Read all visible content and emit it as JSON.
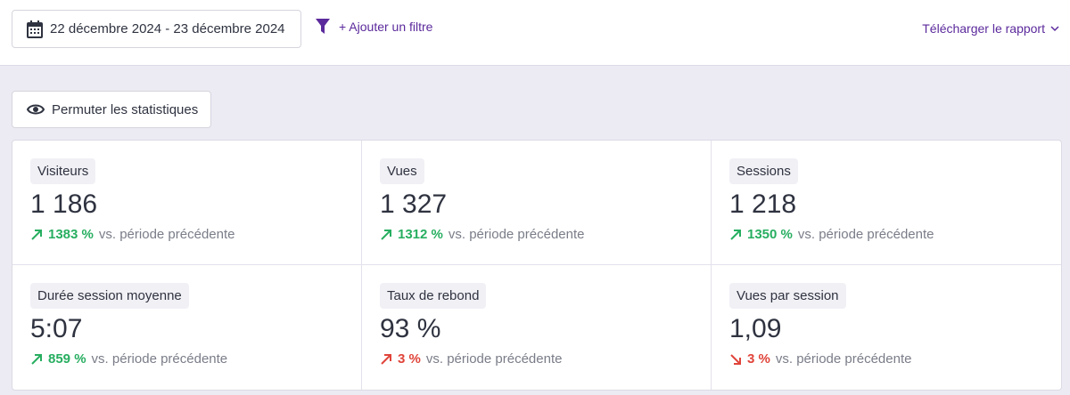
{
  "toolbar": {
    "date_range": "22 décembre 2024 - 23 décembre 2024",
    "add_filter": "+ Ajouter un filtre",
    "download_report": "Télécharger le rapport"
  },
  "toggle_button": "Permuter les statistiques",
  "stats": [
    {
      "label": "Visiteurs",
      "value": "1 186",
      "change": "1383 %",
      "trend": "up",
      "sentiment": "positive",
      "comparison": "vs. période précédente"
    },
    {
      "label": "Vues",
      "value": "1 327",
      "change": "1312 %",
      "trend": "up",
      "sentiment": "positive",
      "comparison": "vs. période précédente"
    },
    {
      "label": "Sessions",
      "value": "1 218",
      "change": "1350 %",
      "trend": "up",
      "sentiment": "positive",
      "comparison": "vs. période précédente"
    },
    {
      "label": "Durée session moyenne",
      "value": "5:07",
      "change": "859 %",
      "trend": "up",
      "sentiment": "positive",
      "comparison": "vs. période précédente"
    },
    {
      "label": "Taux de rebond",
      "value": "93 %",
      "change": "3 %",
      "trend": "up",
      "sentiment": "negative",
      "comparison": "vs. période précédente"
    },
    {
      "label": "Vues par session",
      "value": "1,09",
      "change": "3 %",
      "trend": "down",
      "sentiment": "negative",
      "comparison": "vs. période précédente"
    }
  ]
}
